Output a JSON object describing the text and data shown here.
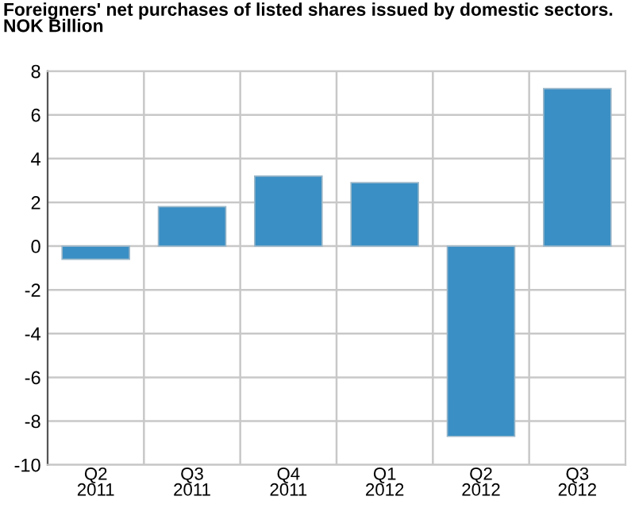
{
  "chart_data": {
    "type": "bar",
    "title": "Foreigners' net purchases of listed shares issued by domestic sectors.\nNOK Billion",
    "categories": [
      "Q2\n2011",
      "Q3\n2011",
      "Q4\n2011",
      "Q1\n2012",
      "Q2\n2012",
      "Q3\n2012"
    ],
    "values": [
      -0.6,
      1.8,
      3.2,
      2.9,
      -8.7,
      7.2
    ],
    "color": "#3a8fc4",
    "ylim": [
      -10,
      8
    ],
    "yticks": [
      {
        "value": -10,
        "label": "-10"
      },
      {
        "value": -8,
        "label": "-8"
      },
      {
        "value": -6,
        "label": "-6"
      },
      {
        "value": -4,
        "label": "-4"
      },
      {
        "value": -2,
        "label": "-2"
      },
      0,
      2,
      4,
      6,
      8
    ],
    "grid": true
  }
}
